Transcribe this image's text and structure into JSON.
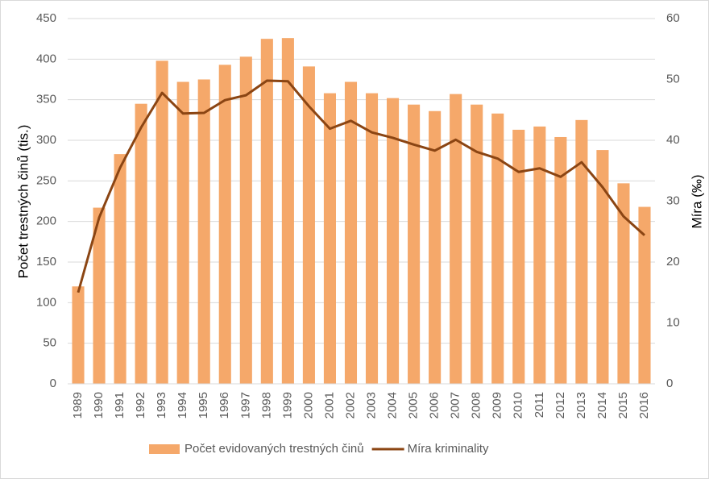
{
  "chart_data": {
    "type": "bar-line",
    "y_label": "Počet trestných činů (tis.)",
    "y2_label": "Míra (‰)",
    "categories": [
      "1989",
      "1990",
      "1991",
      "1992",
      "1993",
      "1994",
      "1995",
      "1996",
      "1997",
      "1998",
      "1999",
      "2000",
      "2001",
      "2002",
      "2003",
      "2004",
      "2005",
      "2006",
      "2007",
      "2008",
      "2009",
      "2010",
      "2011",
      "2012",
      "2013",
      "2014",
      "2015",
      "2016"
    ],
    "series": [
      {
        "name": "Počet evidovaných trestných činů",
        "type": "bar",
        "color": "#f5a86a",
        "values": [
          120,
          217,
          283,
          345,
          398,
          372,
          375,
          393,
          403,
          425,
          426,
          391,
          358,
          372,
          358,
          352,
          344,
          336,
          357,
          344,
          333,
          313,
          317,
          304,
          325,
          288,
          247,
          218
        ]
      },
      {
        "name": "Míra kriminality",
        "type": "line",
        "axis": "y2",
        "color": "#8b4513",
        "values": [
          15.0,
          27.3,
          35.5,
          42.1,
          47.8,
          44.4,
          44.5,
          46.6,
          47.4,
          49.8,
          49.7,
          45.6,
          41.9,
          43.2,
          41.3,
          40.4,
          39.3,
          38.3,
          40.1,
          38.1,
          37.0,
          34.8,
          35.4,
          34.0,
          36.4,
          32.3,
          27.5,
          24.4
        ]
      }
    ],
    "ylim": [
      0,
      450
    ],
    "yticks": [
      0,
      50,
      100,
      150,
      200,
      250,
      300,
      350,
      400,
      450
    ],
    "y2lim": [
      0,
      60
    ],
    "y2ticks": [
      0,
      10,
      20,
      30,
      40,
      50,
      60
    ],
    "grid": true,
    "legend": "bottom"
  }
}
